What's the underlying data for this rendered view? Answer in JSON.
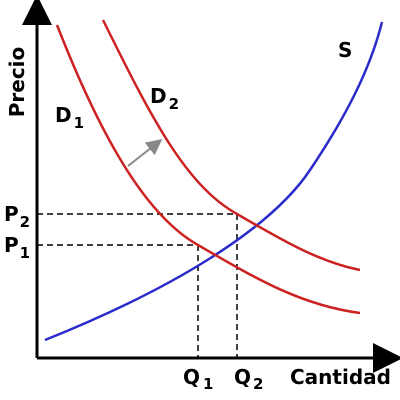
{
  "axes": {
    "y_title": "Precio",
    "x_title": "Cantidad"
  },
  "curves": {
    "supply": {
      "label": "S",
      "color": "#2b2bcc"
    },
    "demand1": {
      "label": "D",
      "sub": "1",
      "color": "#cc2222"
    },
    "demand2": {
      "label": "D",
      "sub": "2",
      "color": "#cc2222"
    }
  },
  "ticks": {
    "p1": {
      "label": "P",
      "sub": "1"
    },
    "p2": {
      "label": "P",
      "sub": "2"
    },
    "q1": {
      "label": "Q",
      "sub": "1"
    },
    "q2": {
      "label": "Q",
      "sub": "2"
    }
  },
  "shift_arrow_color": "#888888"
}
